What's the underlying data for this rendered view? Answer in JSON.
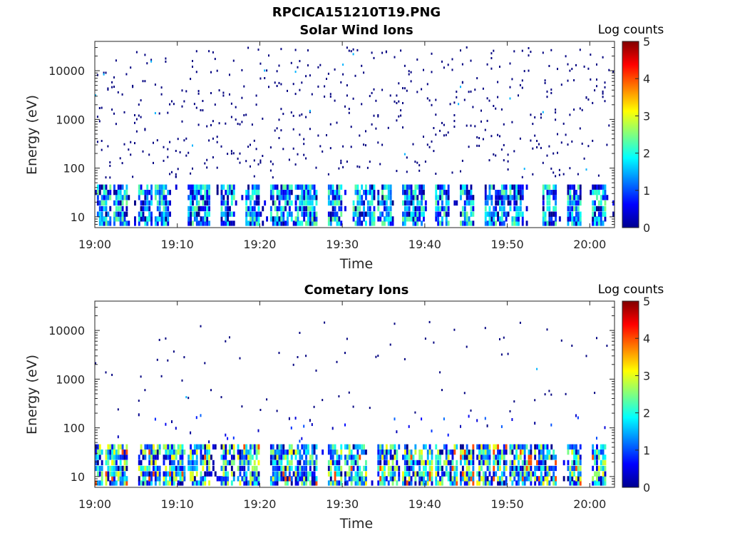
{
  "figure": {
    "title": "RPCICA151210T19.PNG"
  },
  "colormap": {
    "name": "jet",
    "label": "Log counts",
    "range": [
      0,
      5
    ],
    "ticks": [
      "0",
      "1",
      "2",
      "3",
      "4",
      "5"
    ]
  },
  "chart_data": [
    {
      "type": "heatmap",
      "title": "Solar Wind Ions",
      "xlabel": "Time",
      "ylabel": "Energy (eV)",
      "yscale": "log",
      "ylim": [
        6,
        40000
      ],
      "xlim": [
        "19:00",
        "20:03"
      ],
      "x_ticks": [
        "19:00",
        "19:10",
        "19:20",
        "19:30",
        "19:40",
        "19:50",
        "20:00"
      ],
      "y_ticks": [
        "10",
        "100",
        "1000",
        "10000"
      ],
      "colorbar_label": "Log counts",
      "color_range": [
        0,
        5
      ],
      "description_values": {
        "background_scatter_energy_range_eV": [
          60,
          30000
        ],
        "background_scatter_log_counts": 0,
        "low_energy_band_eV": [
          6,
          40
        ],
        "low_energy_band_max_log_counts": 2.5,
        "burst_times": [
          "19:01",
          "19:03",
          "19:06",
          "19:08",
          "19:12",
          "19:13",
          "19:16",
          "19:19",
          "19:22",
          "19:23",
          "19:25",
          "19:26",
          "19:29",
          "19:32",
          "19:33",
          "19:35",
          "19:38",
          "19:39",
          "19:42",
          "19:45",
          "19:48",
          "19:49",
          "19:51",
          "19:55",
          "19:58",
          "20:01"
        ]
      }
    },
    {
      "type": "heatmap",
      "title": "Cometary Ions",
      "xlabel": "Time",
      "ylabel": "Energy (eV)",
      "yscale": "log",
      "ylim": [
        6,
        40000
      ],
      "xlim": [
        "19:00",
        "20:03"
      ],
      "x_ticks": [
        "19:00",
        "19:10",
        "19:20",
        "19:30",
        "19:40",
        "19:50",
        "20:00"
      ],
      "y_ticks": [
        "10",
        "100",
        "1000",
        "10000"
      ],
      "colorbar_label": "Log counts",
      "color_range": [
        0,
        5
      ],
      "description_values": {
        "sparse_scatter_energy_range_eV": [
          200,
          20000
        ],
        "main_band_energy_range_eV": [
          6,
          45
        ],
        "main_band_peak_log_counts": 3.2,
        "max_log_counts": 4.0,
        "burst_times": [
          "19:00",
          "19:02",
          "19:03",
          "19:06",
          "19:07",
          "19:09",
          "19:10",
          "19:12",
          "19:13",
          "19:16",
          "19:18",
          "19:19",
          "19:22",
          "19:23",
          "19:25",
          "19:26",
          "19:29",
          "19:31",
          "19:32",
          "19:35",
          "19:36",
          "19:38",
          "19:40",
          "19:42",
          "19:43",
          "19:45",
          "19:47",
          "19:49",
          "19:51",
          "19:52",
          "19:54",
          "19:55",
          "19:58",
          "20:01"
        ]
      }
    }
  ]
}
